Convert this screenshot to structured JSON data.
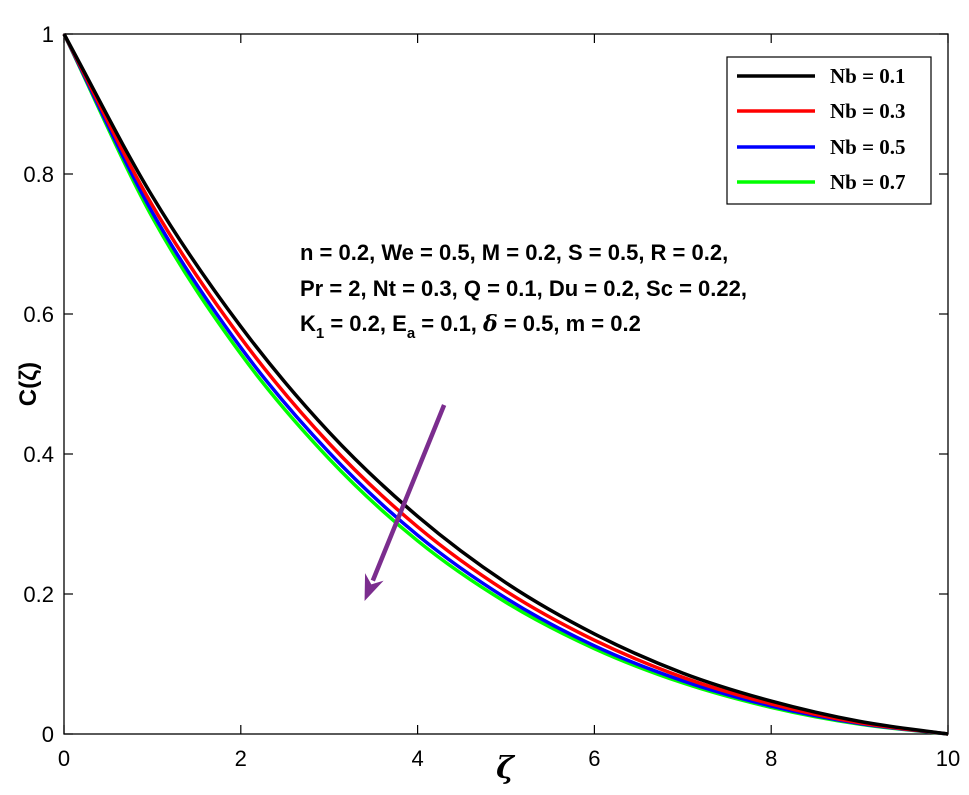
{
  "chart_data": {
    "type": "line",
    "xlabel": "ζ",
    "ylabel": "C(ζ)",
    "xlim": [
      0,
      10
    ],
    "ylim": [
      0,
      1
    ],
    "x_ticks": [
      "0",
      "2",
      "4",
      "6",
      "8",
      "10"
    ],
    "y_ticks": [
      "0",
      "0.2",
      "0.4",
      "0.6",
      "0.8",
      "1"
    ],
    "grid": false,
    "legend_position": "top-right",
    "x": [
      0,
      1,
      2,
      3,
      4,
      5,
      6,
      7,
      8,
      9,
      10
    ],
    "series": [
      {
        "name": "Nb = 0.1",
        "color": "#000000",
        "values": [
          1.0,
          0.768,
          0.582,
          0.431,
          0.311,
          0.216,
          0.143,
          0.087,
          0.047,
          0.018,
          0.0
        ]
      },
      {
        "name": "Nb = 0.3",
        "color": "#ff0000",
        "values": [
          1.0,
          0.755,
          0.566,
          0.415,
          0.296,
          0.204,
          0.134,
          0.081,
          0.043,
          0.016,
          0.0
        ]
      },
      {
        "name": "Nb = 0.5",
        "color": "#0000ff",
        "values": [
          1.0,
          0.745,
          0.552,
          0.402,
          0.284,
          0.194,
          0.126,
          0.076,
          0.04,
          0.015,
          0.0
        ]
      },
      {
        "name": "Nb = 0.7",
        "color": "#00ff00",
        "values": [
          1.0,
          0.738,
          0.543,
          0.393,
          0.276,
          0.188,
          0.122,
          0.073,
          0.038,
          0.014,
          0.0
        ]
      }
    ],
    "annotations": {
      "params_line1": "n = 0.2, We = 0.5, M = 0.2, S = 0.5, R = 0.2,",
      "params_line2": "Pr = 2, Nt = 0.3, Q = 0.1, Du = 0.2, Sc = 0.22,",
      "params_line3": {
        "k": "K",
        "k_sub": "1",
        "k_val": " = 0.2, ",
        "e": "E",
        "e_sub": "a",
        "e_val": " = 0.1, ",
        "delta": "δ",
        "rest": " = 0.5, m = 0.2"
      },
      "arrow": {
        "color": "#7b2d8e",
        "from": [
          4.3,
          0.47
        ],
        "to": [
          3.4,
          0.19
        ]
      }
    }
  }
}
